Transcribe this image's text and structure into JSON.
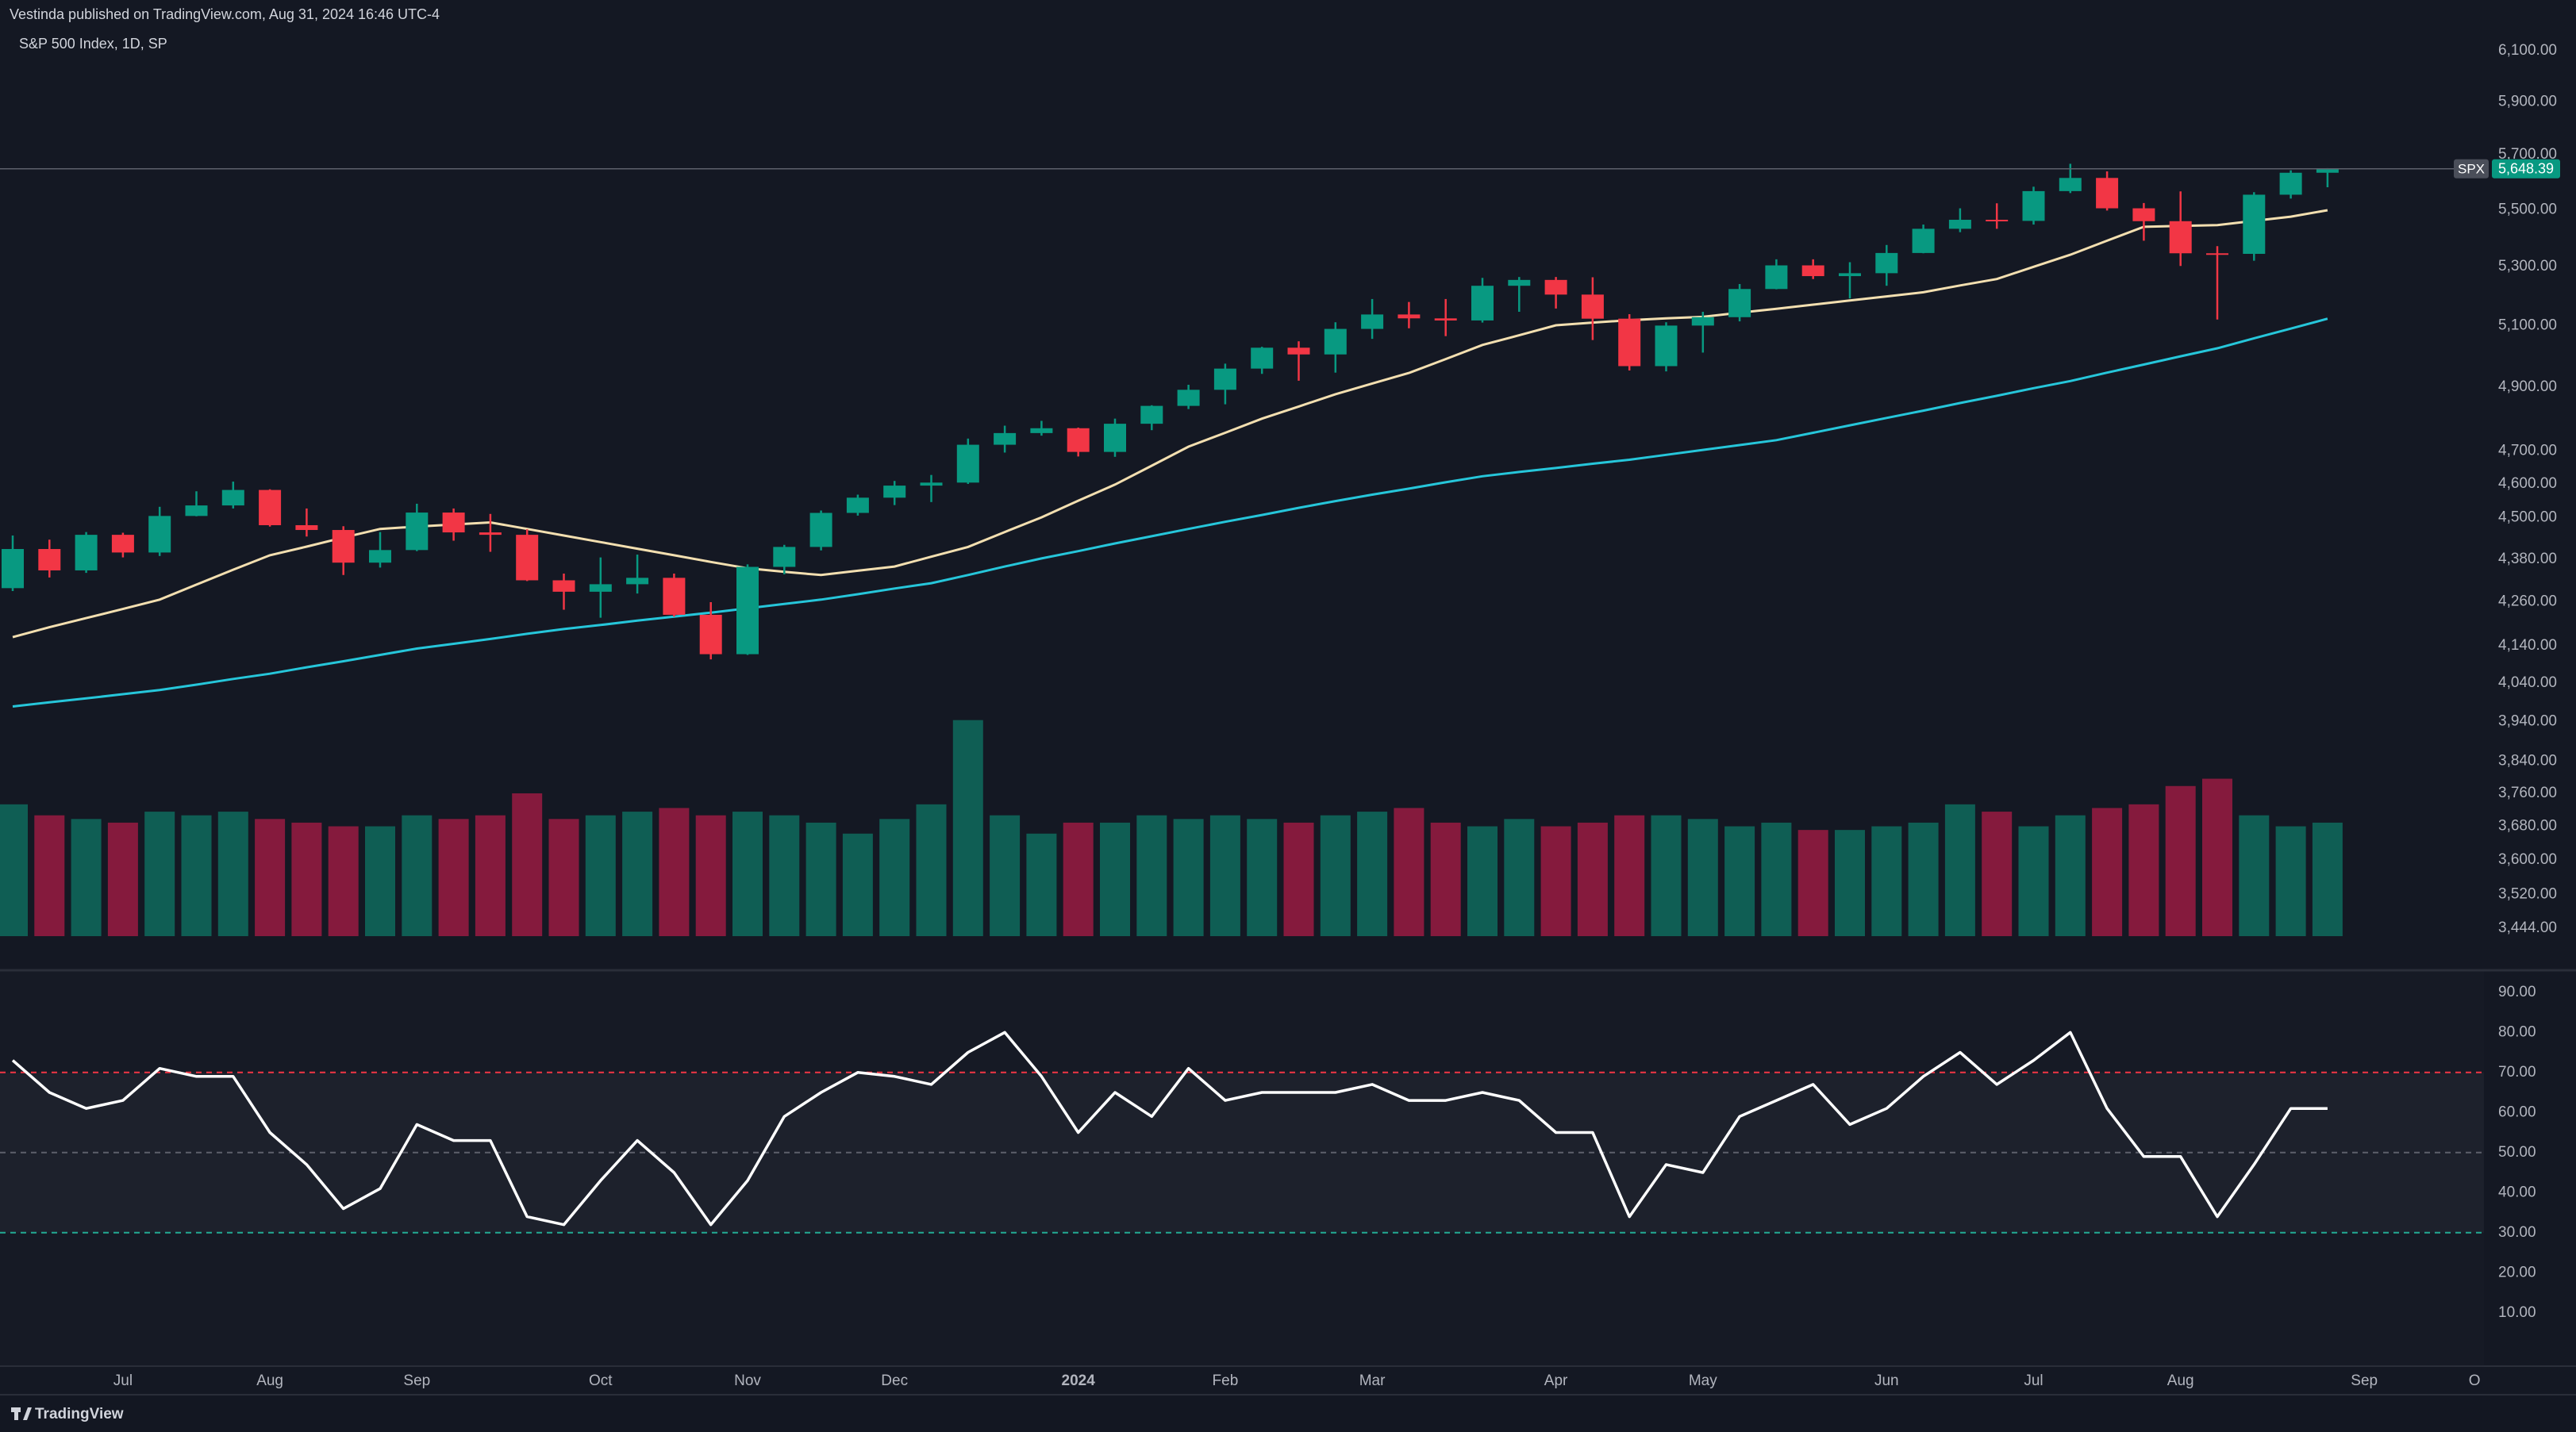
{
  "header": {
    "publisher": "Vestinda published on TradingView.com, Aug 31, 2024 16:46 UTC-4",
    "brand": "TradingView"
  },
  "chart_data": [
    {
      "type": "candlestick",
      "title": "S&P 500 Index, 1D, SP",
      "symbol": "SPX",
      "last_label": "5,648.39",
      "log_scale": true,
      "up_color": "#089981",
      "down_color": "#f23645",
      "categories": [
        null,
        null,
        null,
        "Jul",
        null,
        null,
        null,
        "Aug",
        null,
        null,
        null,
        "Sep",
        null,
        null,
        null,
        null,
        "Oct",
        null,
        null,
        null,
        "Nov",
        null,
        null,
        null,
        "Dec",
        null,
        null,
        null,
        null,
        "2024",
        null,
        null,
        null,
        "Feb",
        null,
        null,
        null,
        "Mar",
        null,
        null,
        null,
        null,
        "Apr",
        null,
        null,
        null,
        "May",
        null,
        null,
        null,
        null,
        "Jun",
        null,
        null,
        null,
        "Jul",
        null,
        null,
        null,
        "Aug",
        null,
        null,
        null,
        null,
        "Sep",
        null,
        null,
        "O"
      ],
      "open": [
        4298,
        4409,
        4348,
        4450,
        4399,
        4505,
        4536,
        4582,
        4478,
        4464,
        4370,
        4406,
        4515,
        4457,
        4450,
        4320,
        4288,
        4309,
        4327,
        4224,
        4117,
        4358,
        4415,
        4514,
        4559,
        4595,
        4604,
        4719,
        4755,
        4770,
        4697,
        4784,
        4840,
        4891,
        4959,
        5027,
        5005,
        5089,
        5137,
        5124,
        5117,
        5234,
        5254,
        5204,
        5123,
        4967,
        5100,
        5128,
        5223,
        5304,
        5267,
        5277,
        5347,
        5432,
        5464,
        5460,
        5567,
        5615,
        5505,
        5459,
        5346,
        5344,
        5554,
        5634,
        null,
        null,
        null,
        null
      ],
      "high": [
        4448,
        4436,
        4458,
        4456,
        4532,
        4578,
        4607,
        4584,
        4527,
        4475,
        4458,
        4541,
        4527,
        4511,
        4466,
        4339,
        4385,
        4393,
        4339,
        4259,
        4365,
        4421,
        4521,
        4568,
        4609,
        4627,
        4738,
        4778,
        4793,
        4772,
        4800,
        4842,
        4907,
        4975,
        5030,
        5048,
        5111,
        5189,
        5179,
        5189,
        5261,
        5264,
        5264,
        5263,
        5138,
        5111,
        5146,
        5240,
        5325,
        5325,
        5315,
        5375,
        5447,
        5505,
        5523,
        5583,
        5667,
        5639,
        5524,
        5566,
        5371,
        5563,
        5643,
        5651,
        null,
        null,
        null,
        null
      ],
      "low": [
        4290,
        4328,
        4341,
        4385,
        4389,
        4504,
        4527,
        4474,
        4445,
        4335,
        4356,
        4403,
        4433,
        4401,
        4318,
        4238,
        4216,
        4283,
        4219,
        4103,
        4115,
        4337,
        4405,
        4506,
        4537,
        4546,
        4600,
        4695,
        4747,
        4683,
        4682,
        4764,
        4830,
        4845,
        4942,
        4920,
        4946,
        5056,
        5091,
        5065,
        5110,
        5146,
        5157,
        5052,
        4953,
        4950,
        5011,
        5114,
        5222,
        5257,
        5191,
        5234,
        5346,
        5420,
        5432,
        5447,
        5560,
        5497,
        5390,
        5302,
        5120,
        5320,
        5540,
        5581,
        null,
        null,
        null,
        null
      ],
      "close": [
        4409,
        4348,
        4450,
        4399,
        4505,
        4536,
        4582,
        4478,
        4464,
        4370,
        4406,
        4515,
        4457,
        4450,
        4320,
        4288,
        4309,
        4327,
        4224,
        4117,
        4358,
        4415,
        4514,
        4559,
        4595,
        4604,
        4719,
        4755,
        4770,
        4697,
        4784,
        4840,
        4891,
        4959,
        5027,
        5005,
        5089,
        5137,
        5124,
        5117,
        5234,
        5254,
        5204,
        5123,
        4967,
        5100,
        5128,
        5223,
        5304,
        5267,
        5277,
        5347,
        5432,
        5464,
        5460,
        5567,
        5615,
        5505,
        5459,
        5346,
        5344,
        5554,
        5634,
        5648.39,
        null,
        null,
        null,
        null
      ],
      "overlays": [
        {
          "color": "#f3dfb0",
          "values": [
            4163,
            4190,
            4215,
            4240,
            4266,
            4308,
            4350,
            4391,
            4416,
            4442,
            4467,
            4474,
            4480,
            4486,
            4467,
            4448,
            4429,
            4410,
            4391,
            4372,
            4354,
            4344,
            4335,
            4347,
            4359,
            4387,
            4415,
            4458,
            4501,
            4550,
            4598,
            4655,
            4713,
            4756,
            4800,
            4838,
            4877,
            4911,
            4945,
            4990,
            5036,
            5068,
            5101,
            5110,
            5118,
            5124,
            5129,
            5143,
            5156,
            5170,
            5184,
            5198,
            5212,
            5235,
            5257,
            5299,
            5341,
            5390,
            5439,
            5442,
            5445,
            5460,
            5475,
            5498,
            null,
            null,
            null,
            null
          ]
        },
        {
          "color": "#26c6da",
          "values": [
            3979,
            3990,
            4000,
            4011,
            4022,
            4036,
            4051,
            4065,
            4082,
            4098,
            4115,
            4132,
            4145,
            4158,
            4172,
            4185,
            4196,
            4208,
            4219,
            4230,
            4242,
            4254,
            4266,
            4281,
            4297,
            4312,
            4335,
            4359,
            4382,
            4403,
            4425,
            4446,
            4467,
            4488,
            4508,
            4529,
            4549,
            4568,
            4586,
            4605,
            4623,
            4636,
            4648,
            4661,
            4673,
            4688,
            4703,
            4718,
            4733,
            4756,
            4779,
            4802,
            4825,
            4849,
            4872,
            4896,
            4919,
            4946,
            4972,
            4999,
            5025,
            5058,
            5090,
            5123,
            null,
            null,
            null,
            null
          ]
        }
      ],
      "volume": {
        "up_color": "#0f5e54",
        "down_color": "#851a3d",
        "ylim": [
          0,
          6.5
        ],
        "values": [
          3.6,
          3.3,
          3.2,
          3.1,
          3.4,
          3.3,
          3.4,
          3.2,
          3.1,
          3.0,
          3.0,
          3.3,
          3.2,
          3.3,
          3.9,
          3.2,
          3.3,
          3.4,
          3.5,
          3.3,
          3.4,
          3.3,
          3.1,
          2.8,
          3.2,
          3.6,
          5.9,
          3.3,
          2.8,
          3.1,
          3.1,
          3.3,
          3.2,
          3.3,
          3.2,
          3.1,
          3.3,
          3.4,
          3.5,
          3.1,
          3.0,
          3.2,
          3.0,
          3.1,
          3.3,
          3.3,
          3.2,
          3.0,
          3.1,
          2.9,
          2.9,
          3.0,
          3.1,
          3.6,
          3.4,
          3.0,
          3.3,
          3.5,
          3.6,
          4.1,
          4.3,
          3.3,
          3.0,
          3.1,
          null,
          null,
          null,
          null
        ]
      },
      "ylim": [
        3426,
        6205
      ],
      "yticks": [
        {
          "value": 6100,
          "label": "6,100.00"
        },
        {
          "value": 5900,
          "label": "5,900.00"
        },
        {
          "value": 5700,
          "label": "5,700.00"
        },
        {
          "value": 5500,
          "label": "5,500.00"
        },
        {
          "value": 5300,
          "label": "5,300.00"
        },
        {
          "value": 5100,
          "label": "5,100.00"
        },
        {
          "value": 4900,
          "label": "4,900.00"
        },
        {
          "value": 4700,
          "label": "4,700.00"
        },
        {
          "value": 4600,
          "label": "4,600.00"
        },
        {
          "value": 4500,
          "label": "4,500.00"
        },
        {
          "value": 4380,
          "label": "4,380.00"
        },
        {
          "value": 4260,
          "label": "4,260.00"
        },
        {
          "value": 4140,
          "label": "4,140.00"
        },
        {
          "value": 4040,
          "label": "4,040.00"
        },
        {
          "value": 3940,
          "label": "3,940.00"
        },
        {
          "value": 3840,
          "label": "3,840.00"
        },
        {
          "value": 3760,
          "label": "3,760.00"
        },
        {
          "value": 3680,
          "label": "3,680.00"
        },
        {
          "value": 3600,
          "label": "3,600.00"
        },
        {
          "value": 3520,
          "label": "3,520.00"
        },
        {
          "value": 3444,
          "label": "3,444.00"
        }
      ]
    },
    {
      "type": "line",
      "color": "#ffffff",
      "values": [
        73,
        65,
        61,
        63,
        71,
        69,
        69,
        55,
        47,
        36,
        41,
        57,
        53,
        53,
        34,
        32,
        43,
        53,
        45,
        32,
        43,
        59,
        65,
        70,
        69,
        67,
        75,
        80,
        69,
        55,
        65,
        59,
        71,
        63,
        65,
        65,
        65,
        67,
        63,
        63,
        65,
        63,
        55,
        55,
        34,
        47,
        45,
        59,
        63,
        67,
        57,
        61,
        69,
        75,
        67,
        73,
        80,
        61,
        49,
        49,
        34,
        47,
        61,
        61,
        null,
        null,
        null,
        null
      ],
      "levels": [
        {
          "value": 70,
          "color": "#f23645"
        },
        {
          "value": 50,
          "color": "#5d606b"
        },
        {
          "value": 30,
          "color": "#22ab94"
        }
      ],
      "ylim": [
        -3.3,
        95.1
      ],
      "yticks": [
        {
          "value": 90,
          "label": "90.00"
        },
        {
          "value": 80,
          "label": "80.00"
        },
        {
          "value": 70,
          "label": "70.00"
        },
        {
          "value": 60,
          "label": "60.00"
        },
        {
          "value": 50,
          "label": "50.00"
        },
        {
          "value": 40,
          "label": "40.00"
        },
        {
          "value": 30,
          "label": "30.00"
        },
        {
          "value": 20,
          "label": "20.00"
        },
        {
          "value": 10,
          "label": "10.00"
        }
      ]
    }
  ]
}
